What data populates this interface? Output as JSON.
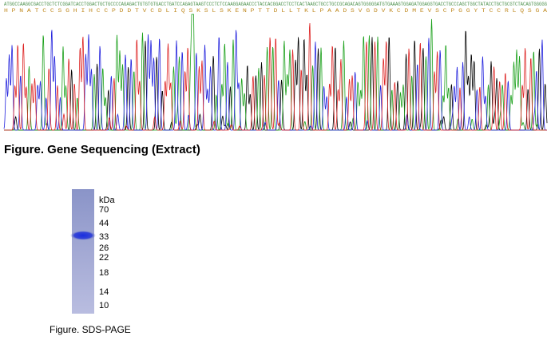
{
  "sequencing": {
    "nucleotides": "ATGGCCAAGGCGACCTGCTCTCGGATCACCTGGACTGCTGCCCCAGAGACTGTGTGTGACCTGATCCAGAGTAAGTCCCTCTCCAAGGAGAACCCTACCACGGACCTCCTCACTAAGCTGCCTGCCGCAGACAGTGGGGGATGTGAAAGTGGAGATGGAGGTGACCTGCCCAGCTGGCTATACCTGCTGCGTCTACAGTGGGGG",
    "amino_acids": "H P N A T C C S G H I H C C P D D T V C D L I Q S K S L S K E N P T T D L L T K L P A A D S V G D V K C D M E V S C P G G Y T C C R L Q S G A",
    "caption": "Figure. Gene Sequencing (Extract)"
  },
  "sds_page": {
    "unit": "kDa",
    "markers": [
      70,
      44,
      33,
      26,
      22,
      18,
      14,
      10
    ],
    "caption": "Figure. SDS-PAGE"
  }
}
